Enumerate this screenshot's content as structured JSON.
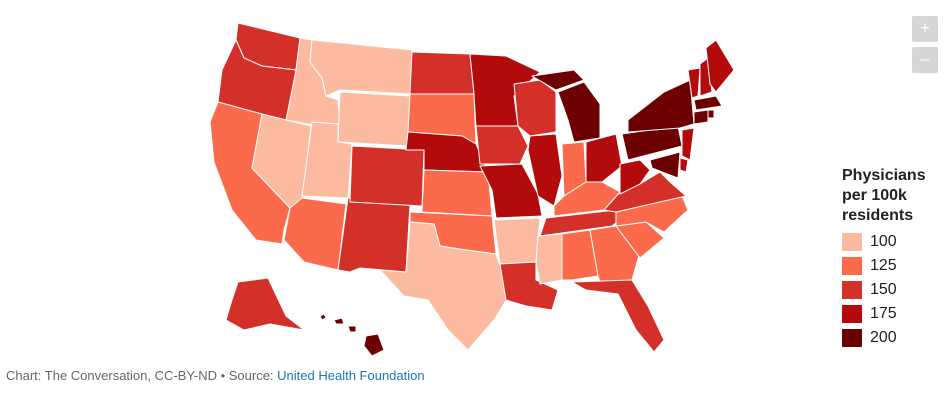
{
  "controls": {
    "zoom_in": "+",
    "zoom_out": "–"
  },
  "legend": {
    "title_lines": [
      "Physicians",
      "per 100k",
      "residents"
    ],
    "bins": [
      {
        "label": "100",
        "color": "#fcbba1"
      },
      {
        "label": "125",
        "color": "#fb6a4a"
      },
      {
        "label": "150",
        "color": "#d4302a"
      },
      {
        "label": "175",
        "color": "#b30b0b"
      },
      {
        "label": "200",
        "color": "#6d0000"
      }
    ]
  },
  "footer": {
    "prefix": "Chart: The Conversation, CC-BY-ND • Source: ",
    "source_link": "United Health Foundation"
  },
  "chart_data": {
    "type": "choropleth",
    "region": "United States",
    "value_unit": "physicians per 100k residents",
    "state_bins": {
      "WA": "150",
      "OR": "150",
      "CA": "125",
      "NV": "100",
      "ID": "100",
      "MT": "100",
      "WY": "100",
      "UT": "100",
      "AZ": "125",
      "NM": "150",
      "CO": "150",
      "ND": "150",
      "SD": "125",
      "NE": "175",
      "KS": "125",
      "OK": "125",
      "TX": "100",
      "MN": "175",
      "IA": "150",
      "MO": "175",
      "AR": "100",
      "LA": "150",
      "WI": "150",
      "IL": "175",
      "MI": "200",
      "IN": "125",
      "OH": "175",
      "KY": "125",
      "TN": "150",
      "MS": "100",
      "AL": "125",
      "GA": "125",
      "FL": "150",
      "SC": "125",
      "NC": "125",
      "VA": "150",
      "WV": "175",
      "PA": "200",
      "NY": "200",
      "VT": "175",
      "NH": "175",
      "ME": "175",
      "MA": "200",
      "RI": "200",
      "CT": "200",
      "NJ": "175",
      "DE": "175",
      "MD": "200",
      "AK": "150",
      "HI": "200"
    }
  }
}
